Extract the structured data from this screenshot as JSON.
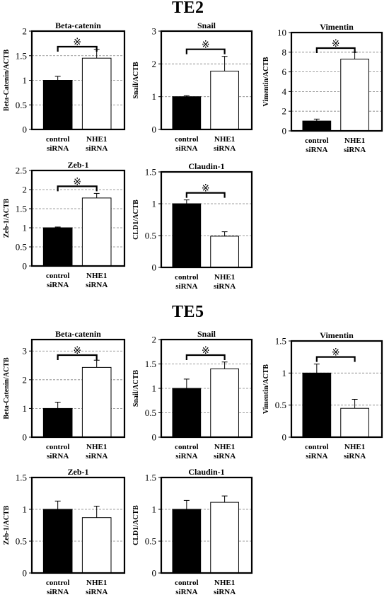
{
  "sections": [
    {
      "title": "TE2"
    },
    {
      "title": "TE5"
    }
  ],
  "chart_data": [
    {
      "type": "bar",
      "section": "TE2",
      "title": "Beta-catenin",
      "ylabel": "Beta-Catenin/ACTB",
      "categories": [
        [
          "control",
          "siRNA"
        ],
        [
          "NHE1",
          "siRNA"
        ]
      ],
      "values": [
        1.0,
        1.45
      ],
      "errors": [
        0.08,
        0.18
      ],
      "ylim": [
        0,
        2
      ],
      "yticks": [
        0,
        0.5,
        1,
        1.5,
        2
      ],
      "ytick_labels": [
        "0",
        "0.5",
        "1",
        "1.5",
        "2"
      ],
      "bar_colors": [
        "#000000",
        "#ffffff"
      ],
      "significance": "※"
    },
    {
      "type": "bar",
      "section": "TE2",
      "title": "Snail",
      "ylabel": "Snail/ACTB",
      "categories": [
        [
          "control",
          "siRNA"
        ],
        [
          "NHE1",
          "siRNA"
        ]
      ],
      "values": [
        1.0,
        1.78
      ],
      "errors": [
        0.03,
        0.45
      ],
      "ylim": [
        0,
        3
      ],
      "yticks": [
        0,
        1,
        2,
        3
      ],
      "ytick_labels": [
        "0",
        "1",
        "2",
        "3"
      ],
      "bar_colors": [
        "#000000",
        "#ffffff"
      ],
      "significance": "※"
    },
    {
      "type": "bar",
      "section": "TE2",
      "title": "Vimentin",
      "ylabel": "Vimentin/ACTB",
      "categories": [
        [
          "control",
          "siRNA"
        ],
        [
          "NHE1",
          "siRNA"
        ]
      ],
      "values": [
        1.0,
        7.3
      ],
      "errors": [
        0.2,
        0.7
      ],
      "ylim": [
        0,
        10
      ],
      "yticks": [
        0,
        2,
        4,
        6,
        8,
        10
      ],
      "ytick_labels": [
        "0",
        "2",
        "4",
        "6",
        "8",
        "10"
      ],
      "bar_colors": [
        "#000000",
        "#ffffff"
      ],
      "significance": "※"
    },
    {
      "type": "bar",
      "section": "TE2",
      "title": "Zeb-1",
      "ylabel": "Zeb-1/ACTB",
      "categories": [
        [
          "control",
          "siRNA"
        ],
        [
          "NHE1",
          "siRNA"
        ]
      ],
      "values": [
        1.0,
        1.78
      ],
      "errors": [
        0.02,
        0.12
      ],
      "ylim": [
        0,
        2.5
      ],
      "yticks": [
        0,
        0.5,
        1,
        1.5,
        2,
        2.5
      ],
      "ytick_labels": [
        "0",
        "0.5",
        "1",
        "1.5",
        "2",
        "2.5"
      ],
      "bar_colors": [
        "#000000",
        "#ffffff"
      ],
      "significance": "※"
    },
    {
      "type": "bar",
      "section": "TE2",
      "title": "Claudin-1",
      "ylabel": "CLD1/ACTB",
      "categories": [
        [
          "control",
          "siRNA"
        ],
        [
          "NHE1",
          "siRNA"
        ]
      ],
      "values": [
        1.0,
        0.49
      ],
      "errors": [
        0.06,
        0.07
      ],
      "ylim": [
        0,
        1.5
      ],
      "yticks": [
        0,
        0.5,
        1,
        1.5
      ],
      "ytick_labels": [
        "0",
        "0.5",
        "1",
        "1.5"
      ],
      "bar_colors": [
        "#000000",
        "#ffffff"
      ],
      "significance": "※"
    },
    {
      "type": "bar",
      "section": "TE5",
      "title": "Beta-catenin",
      "ylabel": "Beta-Catenin/ACTB",
      "categories": [
        [
          "control",
          "siRNA"
        ],
        [
          "NHE1",
          "siRNA"
        ]
      ],
      "values": [
        1.0,
        2.43
      ],
      "errors": [
        0.22,
        0.25
      ],
      "ylim": [
        0,
        3.4
      ],
      "yticks": [
        0,
        1,
        2,
        3
      ],
      "ytick_labels": [
        "0",
        "1",
        "2",
        "3"
      ],
      "bar_colors": [
        "#000000",
        "#ffffff"
      ],
      "significance": "※"
    },
    {
      "type": "bar",
      "section": "TE5",
      "title": "Snail",
      "ylabel": "Snail/ACTB",
      "categories": [
        [
          "control",
          "siRNA"
        ],
        [
          "NHE1",
          "siRNA"
        ]
      ],
      "values": [
        1.0,
        1.4
      ],
      "errors": [
        0.19,
        0.14
      ],
      "ylim": [
        0,
        2
      ],
      "yticks": [
        0,
        0.5,
        1,
        1.5,
        2
      ],
      "ytick_labels": [
        "0",
        "0.5",
        "1",
        "1.5",
        "2"
      ],
      "bar_colors": [
        "#000000",
        "#ffffff"
      ],
      "significance": "※"
    },
    {
      "type": "bar",
      "section": "TE5",
      "title": "Vimentin",
      "ylabel": "Vimentin/ACTB",
      "categories": [
        [
          "control",
          "siRNA"
        ],
        [
          "NHE1",
          "siRNA"
        ]
      ],
      "values": [
        1.0,
        0.45
      ],
      "errors": [
        0.14,
        0.14
      ],
      "ylim": [
        0,
        1.5
      ],
      "yticks": [
        0,
        0.5,
        1,
        1.5
      ],
      "ytick_labels": [
        "0",
        "0.5",
        "1",
        "1.5"
      ],
      "bar_colors": [
        "#000000",
        "#ffffff"
      ],
      "significance": "※"
    },
    {
      "type": "bar",
      "section": "TE5",
      "title": "Zeb-1",
      "ylabel": "Zeb-1/ACTB",
      "categories": [
        [
          "control",
          "siRNA"
        ],
        [
          "NHE1",
          "siRNA"
        ]
      ],
      "values": [
        1.0,
        0.87
      ],
      "errors": [
        0.13,
        0.18
      ],
      "ylim": [
        0,
        1.5
      ],
      "yticks": [
        0,
        0.5,
        1,
        1.5
      ],
      "ytick_labels": [
        "0",
        "0.5",
        "1",
        "1.5"
      ],
      "bar_colors": [
        "#000000",
        "#ffffff"
      ],
      "significance": ""
    },
    {
      "type": "bar",
      "section": "TE5",
      "title": "Claudin-1",
      "ylabel": "CLD1/ACTB",
      "categories": [
        [
          "control",
          "siRNA"
        ],
        [
          "NHE1",
          "siRNA"
        ]
      ],
      "values": [
        1.0,
        1.11
      ],
      "errors": [
        0.14,
        0.1
      ],
      "ylim": [
        0,
        1.5
      ],
      "yticks": [
        0,
        0.5,
        1,
        1.5
      ],
      "ytick_labels": [
        "0",
        "0.5",
        "1",
        "1.5"
      ],
      "bar_colors": [
        "#000000",
        "#ffffff"
      ],
      "significance": ""
    }
  ]
}
